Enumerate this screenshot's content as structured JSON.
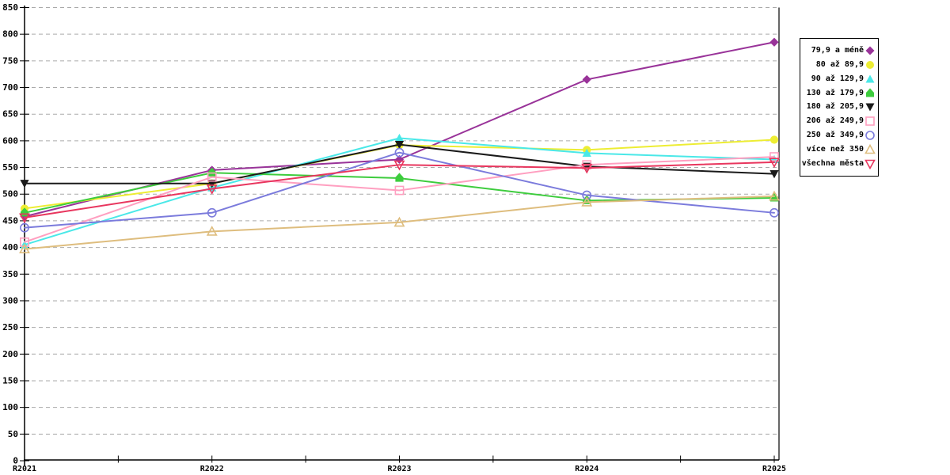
{
  "page": {
    "background": "#FFFFFF"
  },
  "chart_data": {
    "type": "line",
    "title": "",
    "xlabel": "",
    "ylabel": "",
    "x_labels": [
      "R2021",
      "R2022",
      "R2023",
      "R2024",
      "R2025"
    ],
    "y_axis": {
      "min": 0,
      "max": 850,
      "tick_step": 50
    },
    "grid": {
      "horizontal": true,
      "style": "dashed",
      "color": "#AAAAAA"
    },
    "legend": {
      "position": "right",
      "border_color": "#000000",
      "background": "#FFFFFF"
    },
    "series": [
      {
        "name": "79,9 a méně",
        "color": "#993399",
        "marker": "diamond-filled",
        "values": [
          458,
          545,
          565,
          715,
          785
        ]
      },
      {
        "name": "80 až 89,9",
        "color": "#EDED33",
        "marker": "circle-filled",
        "values": [
          473,
          520,
          592,
          583,
          602
        ]
      },
      {
        "name": "90 až 129,9",
        "color": "#4AE8E8",
        "marker": "triangle-up-filled",
        "values": [
          405,
          512,
          605,
          577,
          565
        ]
      },
      {
        "name": "130 až 179,9",
        "color": "#3DCC3D",
        "marker": "pentagon-filled",
        "values": [
          465,
          540,
          530,
          488,
          493
        ]
      },
      {
        "name": "180 až 205,9",
        "color": "#1A1A1A",
        "marker": "triangle-down-filled",
        "values": [
          520,
          520,
          593,
          552,
          538
        ]
      },
      {
        "name": "206 až 249,9",
        "color": "#FF9FC0",
        "marker": "square-open",
        "values": [
          410,
          532,
          507,
          555,
          570
        ]
      },
      {
        "name": "250 až 349,9",
        "color": "#7B7BDC",
        "marker": "circle-open",
        "values": [
          437,
          465,
          578,
          498,
          465
        ]
      },
      {
        "name": "více než 350",
        "color": "#DEBD7E",
        "marker": "triangle-up-open",
        "values": [
          397,
          430,
          447,
          485,
          496
        ]
      },
      {
        "name": "všechna města",
        "color": "#E8365E",
        "marker": "triangle-down-open",
        "values": [
          456,
          510,
          555,
          549,
          560
        ]
      }
    ]
  }
}
